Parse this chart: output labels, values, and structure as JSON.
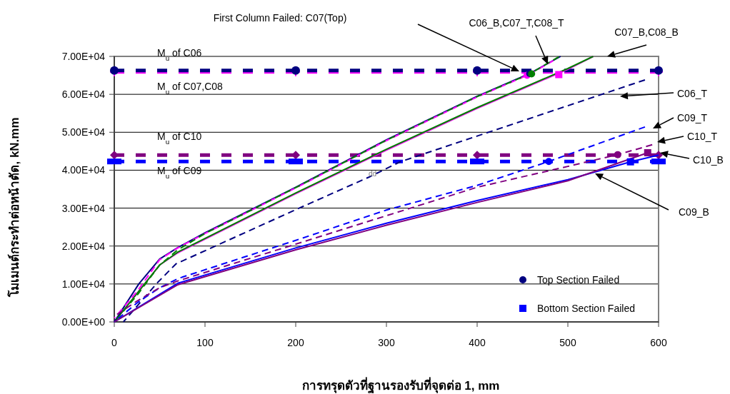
{
  "chart_data": {
    "type": "line",
    "xlabel": "การทรุดตัวที่ฐานรองรับที่จุดต่อ 1, mm",
    "ylabel": "โมเมนต์กระทำต่อหน้าตัด, kN.mm",
    "xlim": [
      0,
      600
    ],
    "xticks": [
      0,
      100,
      200,
      300,
      400,
      500,
      600
    ],
    "ylim": [
      0,
      70000
    ],
    "yticks": [
      {
        "value": 0,
        "label": "0.00E+00"
      },
      {
        "value": 10000,
        "label": "1.00E+04"
      },
      {
        "value": 20000,
        "label": "2.00E+04"
      },
      {
        "value": 30000,
        "label": "3.00E+04"
      },
      {
        "value": 40000,
        "label": "4.00E+04"
      },
      {
        "value": 50000,
        "label": "5.00E+04"
      },
      {
        "value": 60000,
        "label": "6.00E+04"
      },
      {
        "value": 70000,
        "label": "7.00E+04"
      }
    ],
    "grid": "y",
    "legend": "bottom right",
    "series": [
      {
        "color": "#ff00ff",
        "line_style": "dashed",
        "marker": "cross",
        "x": [
          0,
          200,
          400,
          600
        ],
        "values": [
          65900,
          65900,
          65900,
          65900
        ]
      },
      {
        "color": "#000080",
        "line_style": "dashed",
        "marker": "circle",
        "x": [
          0,
          200,
          400,
          600
        ],
        "values": [
          66300,
          66300,
          66300,
          66300
        ]
      },
      {
        "color": "#800080",
        "line_style": "dashed",
        "marker": "diamond",
        "x": [
          0,
          200,
          400,
          600
        ],
        "values": [
          44000,
          44000,
          44000,
          44000
        ]
      },
      {
        "color": "#0000ff",
        "line_style": "dashed",
        "marker": "square",
        "x": [
          0,
          200,
          400,
          600
        ],
        "values": [
          42300,
          42300,
          42300,
          42300
        ]
      },
      {
        "color": "#ff00ff",
        "line_style": "solid",
        "x": [
          0,
          50,
          70,
          200,
          300,
          400,
          500,
          528
        ],
        "values": [
          0,
          15000,
          18200,
          33800,
          45300,
          56300,
          66600,
          70000
        ]
      },
      {
        "color": "#008000",
        "line_style": "solid",
        "x": [
          0,
          50,
          70,
          200,
          300,
          400,
          500,
          528
        ],
        "values": [
          0,
          15000,
          18400,
          34000,
          45500,
          56500,
          66800,
          70000
        ]
      },
      {
        "color": "#000080",
        "line_style": "solid",
        "x": [
          0,
          27,
          50,
          70,
          100,
          200,
          300,
          400,
          458,
          492
        ],
        "values": [
          0,
          10000,
          16600,
          19600,
          23500,
          35500,
          48000,
          59500,
          65500,
          70000
        ]
      },
      {
        "color": "#ff00ff",
        "line_style": "dashed",
        "x": [
          0,
          25,
          50,
          70,
          100,
          200,
          300,
          400,
          458,
          484
        ],
        "values": [
          1000,
          8000,
          16400,
          19500,
          23300,
          35300,
          47800,
          59300,
          65300,
          68900
        ]
      },
      {
        "color": "#008000",
        "line_style": "dashed",
        "x": [
          0,
          25,
          50,
          70,
          100,
          200,
          300,
          400,
          458,
          490
        ],
        "values": [
          0,
          7000,
          15000,
          19000,
          23300,
          35400,
          47900,
          59400,
          65400,
          69900
        ]
      },
      {
        "color": "#000080",
        "line_style": "dashed",
        "x": [
          10,
          47,
          68,
          202,
          281,
          315,
          400,
          500,
          585
        ],
        "values": [
          0,
          10200,
          15300,
          29800,
          38200,
          42200,
          49000,
          57000,
          63800
        ]
      },
      {
        "color": "#0000ff",
        "line_style": "dashed",
        "x": [
          0,
          25,
          50,
          71,
          200,
          300,
          400,
          479,
          585
        ],
        "values": [
          0,
          5000,
          9000,
          11500,
          21500,
          29500,
          36000,
          42300,
          51400
        ]
      },
      {
        "color": "#800080",
        "line_style": "dashed",
        "x": [
          0,
          25,
          50,
          70,
          200,
          300,
          400,
          500,
          555,
          593
        ],
        "values": [
          1500,
          5500,
          9000,
          10800,
          20500,
          28000,
          35500,
          41000,
          44100,
          46700
        ]
      },
      {
        "color": "#0000ff",
        "line_style": "solid",
        "x": [
          0,
          70,
          200,
          300,
          400,
          500,
          569,
          600
        ],
        "values": [
          0,
          10200,
          19500,
          26000,
          32000,
          37500,
          42200,
          44000
        ]
      },
      {
        "color": "#800080",
        "line_style": "solid",
        "x": [
          0,
          70,
          200,
          300,
          400,
          500,
          588
        ],
        "values": [
          0,
          9800,
          19000,
          25500,
          31500,
          37200,
          44600
        ]
      },
      {
        "name": "Top Section Failed",
        "type": "scatter",
        "marker": "circle",
        "color": "#000080",
        "x": [
          455,
          458,
          460,
          479,
          555
        ],
        "values": [
          65000,
          65500,
          65400,
          42300,
          44100
        ],
        "colors": [
          "#ff00ff",
          "#000080",
          "#008000",
          "#0000ff",
          "#800080"
        ]
      },
      {
        "name": "Bottom Section Failed",
        "type": "scatter",
        "marker": "square",
        "color": "#0000ff",
        "x": [
          490,
          569,
          588
        ],
        "values": [
          65200,
          42200,
          44600
        ],
        "colors": [
          "#ff00ff",
          "#0000ff",
          "#800080"
        ]
      }
    ],
    "annotations": [
      "First Column Failed: C07(Top)",
      "C06_B,C07_T,C08_T",
      "C07_B,C08_B",
      "C06_T",
      "C09_T",
      "C10_T",
      "C10_B",
      "C09_B",
      "M$_{u}$ of C06",
      "M$_{u}$ of C07,C08",
      "M$_{u}$ of C10",
      "M$_{u}$ of C09",
      "dd"
    ]
  }
}
